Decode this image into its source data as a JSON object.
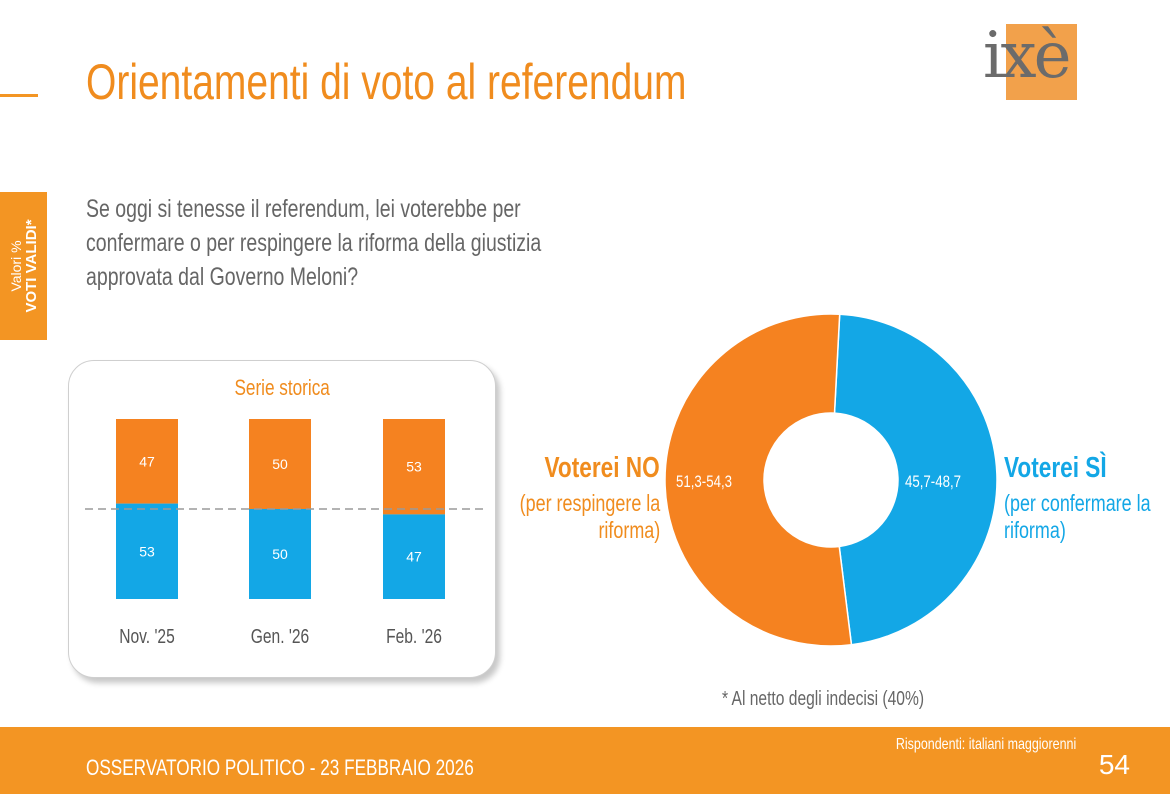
{
  "header": {
    "title": "Orientamenti di voto al referendum",
    "logo_text": "ixè"
  },
  "side_tab": {
    "line1": "Valori %",
    "line2": "VOTI VALIDI*"
  },
  "question": {
    "lines": [
      "Se oggi si tenesse il referendum, lei voterebbe per",
      "confermare o per respingere la riforma della giustizia",
      "approvata dal Governo Meloni?"
    ]
  },
  "donut": {
    "no_title": "Voterei NO",
    "no_sub_lines": [
      "(per respingere la",
      "riforma)"
    ],
    "si_title": "Voterei SÌ",
    "si_sub_lines": [
      "(per confermare la",
      "riforma)"
    ],
    "no_range": "51,3-54,3",
    "si_range": "45,7-48,7"
  },
  "chart_data": [
    {
      "type": "bar",
      "title": "Serie storica",
      "categories": [
        "Nov. '25",
        "Gen. '26",
        "Feb. '26"
      ],
      "stacked": true,
      "series": [
        {
          "name": "Voterei SÌ",
          "color": "#13a7e6",
          "values": [
            53,
            50,
            47
          ],
          "labels": [
            "53",
            "50",
            "47"
          ]
        },
        {
          "name": "Voterei NO",
          "color": "#f58220",
          "values": [
            47,
            50,
            53
          ],
          "labels": [
            "47",
            "50",
            "53"
          ]
        }
      ],
      "ylim": [
        0,
        100
      ],
      "reference_line": 50
    },
    {
      "type": "pie",
      "donut": true,
      "slices": [
        {
          "name": "Voterei NO",
          "value": 52.8,
          "range_label": "51,3-54,3",
          "color": "#f58220"
        },
        {
          "name": "Voterei SÌ",
          "value": 47.2,
          "range_label": "45,7-48,7",
          "color": "#13a7e6"
        }
      ]
    }
  ],
  "footnote": "* Al netto degli indecisi (40%)",
  "footer": {
    "left": "OSSERVATORIO POLITICO - 23 FEBBRAIO 2026",
    "respondents": "Rispondenti: italiani maggiorenni",
    "page": "54"
  },
  "colors": {
    "accent": "#f39523",
    "no": "#f58220",
    "si": "#13a7e6",
    "text_gray": "#666666"
  }
}
